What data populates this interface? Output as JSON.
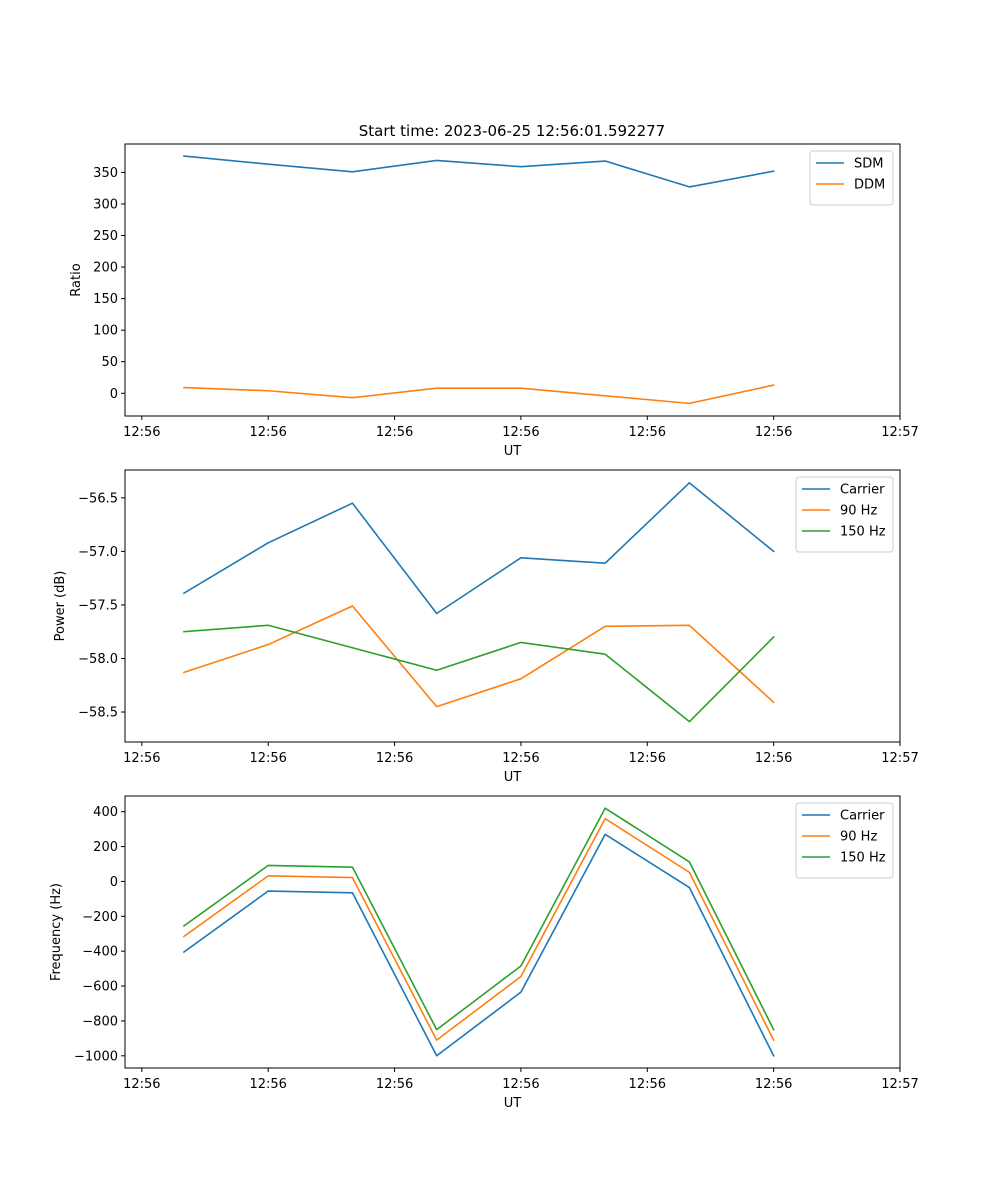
{
  "title": "Start time: 2023-06-25 12:56:01.592277",
  "colors": {
    "c1": "#1f77b4",
    "c2": "#ff7f0e",
    "c3": "#2ca02c"
  },
  "chart_data": [
    {
      "type": "line",
      "xlabel": "UT",
      "ylabel": "Ratio",
      "x": [
        1,
        2,
        3,
        4,
        5,
        6,
        7,
        8
      ],
      "xticklabels": [
        "12:56",
        "12:56",
        "12:56",
        "12:56",
        "12:56",
        "12:56",
        "12:57"
      ],
      "xlim": [
        0.3,
        9.5
      ],
      "ylim": [
        -36,
        395
      ],
      "yticks": [
        0,
        50,
        100,
        150,
        200,
        250,
        300,
        350
      ],
      "grid": false,
      "legend": "top-right",
      "series": [
        {
          "name": "SDM",
          "color": "#1f77b4",
          "values": [
            376,
            363,
            351,
            369,
            359,
            368,
            327,
            352
          ]
        },
        {
          "name": "DDM",
          "color": "#ff7f0e",
          "values": [
            9,
            4,
            -7,
            8,
            8,
            -4,
            -16,
            13
          ]
        }
      ]
    },
    {
      "type": "line",
      "xlabel": "UT",
      "ylabel": "Power (dB)",
      "x": [
        1,
        2,
        3,
        4,
        5,
        6,
        7,
        8
      ],
      "xticklabels": [
        "12:56",
        "12:56",
        "12:56",
        "12:56",
        "12:56",
        "12:56",
        "12:57"
      ],
      "xlim": [
        0.3,
        9.5
      ],
      "ylim": [
        -58.78,
        -56.24
      ],
      "yticks": [
        -58.5,
        -58.0,
        -57.5,
        -57.0,
        -56.5
      ],
      "yticklabels": [
        "−58.5",
        "−58.0",
        "−57.5",
        "−57.0",
        "−56.5"
      ],
      "grid": false,
      "legend": "top-right",
      "series": [
        {
          "name": "Carrier",
          "color": "#1f77b4",
          "values": [
            -57.39,
            -56.92,
            -56.55,
            -57.58,
            -57.06,
            -57.11,
            -56.36,
            -57.0
          ]
        },
        {
          "name": "90 Hz",
          "color": "#ff7f0e",
          "values": [
            -58.13,
            -57.87,
            -57.51,
            -58.45,
            -58.19,
            -57.7,
            -57.69,
            -58.41
          ]
        },
        {
          "name": "150 Hz",
          "color": "#2ca02c",
          "values": [
            -57.75,
            -57.69,
            -57.9,
            -58.11,
            -57.85,
            -57.96,
            -58.59,
            -57.8
          ]
        }
      ]
    },
    {
      "type": "line",
      "xlabel": "UT",
      "ylabel": "Frequency (Hz)",
      "x": [
        1,
        2,
        3,
        4,
        5,
        6,
        7,
        8
      ],
      "xticklabels": [
        "12:56",
        "12:56",
        "12:56",
        "12:56",
        "12:56",
        "12:56",
        "12:57"
      ],
      "xlim": [
        0.3,
        9.5
      ],
      "ylim": [
        -1070,
        490
      ],
      "yticks": [
        -1000,
        -800,
        -600,
        -400,
        -200,
        0,
        200,
        400
      ],
      "yticklabels": [
        "−1000",
        "−800",
        "−600",
        "−400",
        "−200",
        "0",
        "200",
        "400"
      ],
      "grid": false,
      "legend": "top-right",
      "series": [
        {
          "name": "Carrier",
          "color": "#1f77b4",
          "values": [
            -405,
            -55,
            -65,
            -1000,
            -635,
            270,
            -35,
            -1000
          ]
        },
        {
          "name": "90 Hz",
          "color": "#ff7f0e",
          "values": [
            -315,
            32,
            22,
            -910,
            -545,
            360,
            52,
            -910
          ]
        },
        {
          "name": "150 Hz",
          "color": "#2ca02c",
          "values": [
            -255,
            92,
            82,
            -850,
            -485,
            420,
            112,
            -850
          ]
        }
      ]
    }
  ]
}
